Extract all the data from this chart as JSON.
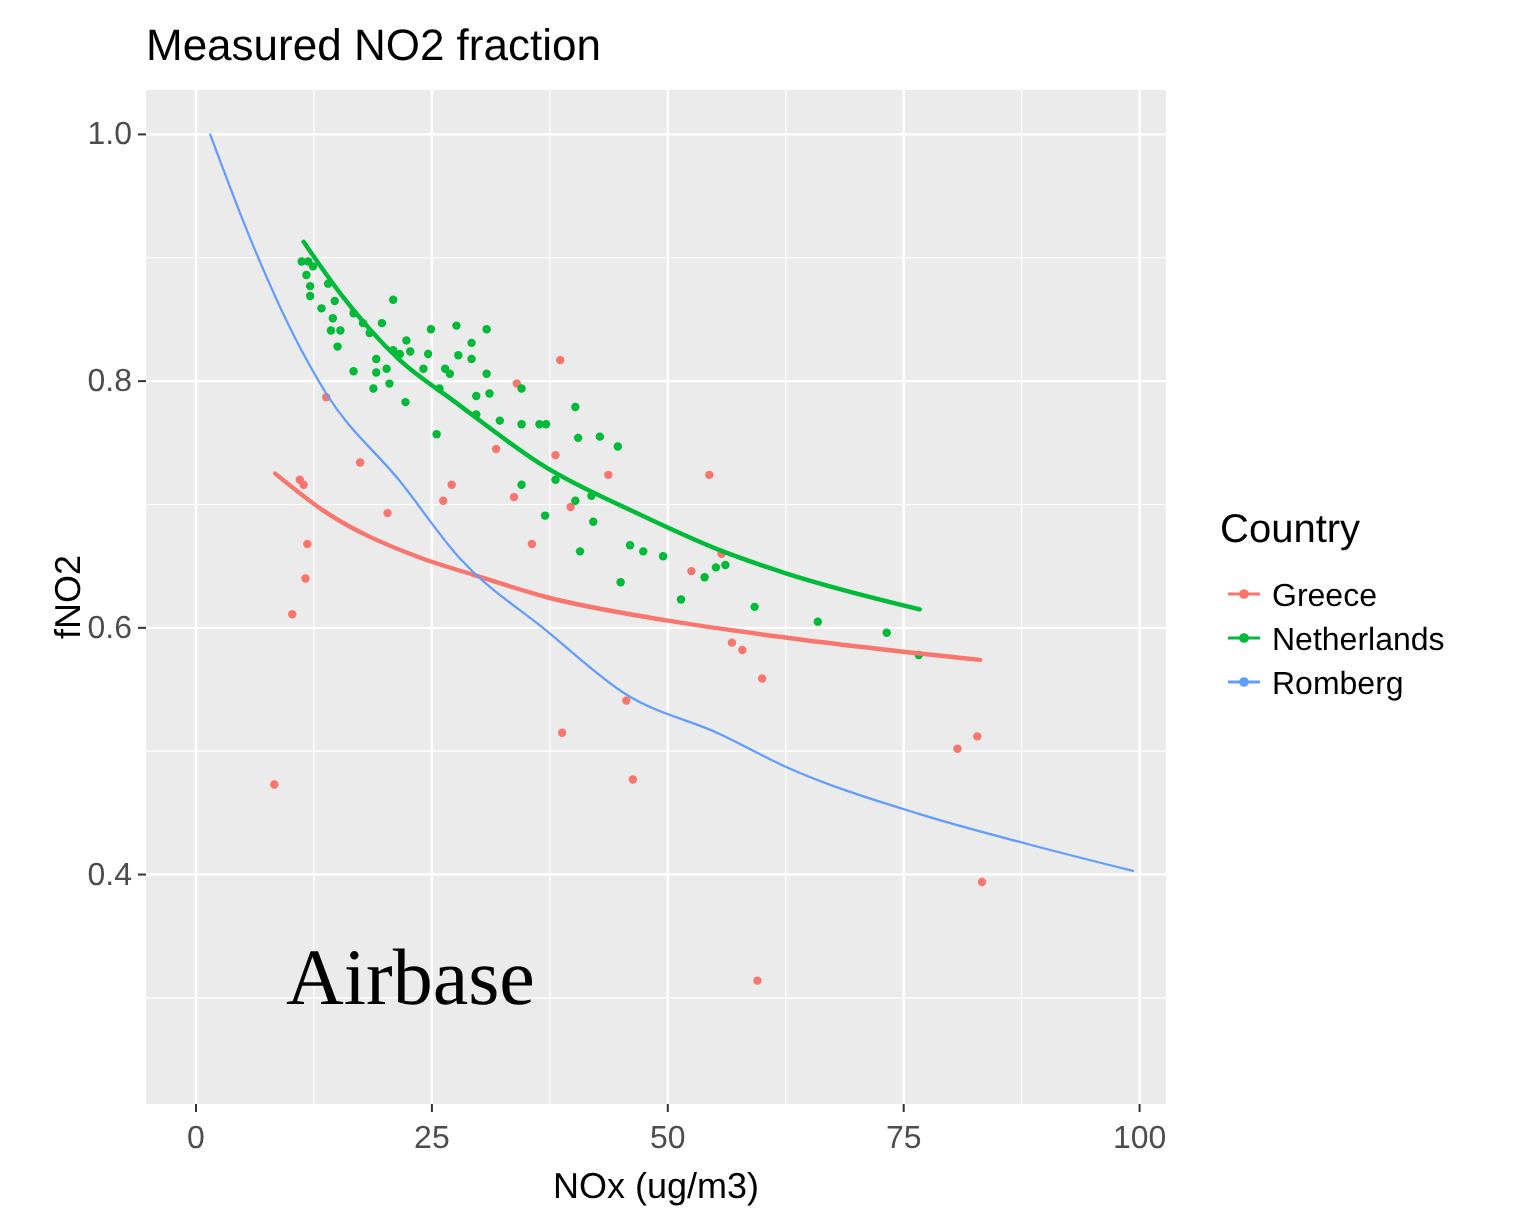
{
  "chart_data": {
    "type": "scatter",
    "title": "Measured NO2 fraction",
    "xlabel": "NOx (ug/m3)",
    "ylabel": "fNO2",
    "legend_title": "Country",
    "legend": "right",
    "grid": true,
    "xlim": [
      -5.3,
      102.8
    ],
    "xticks": [
      0,
      {
        "value": 12.5,
        "label": null
      },
      25,
      {
        "value": 37.5,
        "label": null
      },
      50,
      {
        "value": 62.5,
        "label": null
      },
      75,
      {
        "value": 87.5,
        "label": null
      },
      100
    ],
    "ylim": [
      0.214,
      1.036
    ],
    "yticks": [
      {
        "value": 0.3,
        "label": null
      },
      {
        "value": 0.4,
        "label": "0.4"
      },
      {
        "value": 0.5,
        "label": null
      },
      {
        "value": 0.6,
        "label": "0.6"
      },
      {
        "value": 0.7,
        "label": null
      },
      {
        "value": 0.8,
        "label": "0.8"
      },
      {
        "value": 0.9,
        "label": null
      },
      {
        "value": 1.0,
        "label": "1.0"
      }
    ],
    "annotations": [
      "Airbase"
    ],
    "series": [
      {
        "name": "Greece",
        "marker": "circle",
        "color": "#f8766d",
        "x": [
          8.3,
          10.2,
          11.0,
          11.4,
          11.6,
          11.8,
          13.8,
          17.4,
          20.3,
          26.2,
          27.1,
          31.8,
          33.7,
          34.0,
          35.6,
          38.1,
          38.6,
          38.8,
          39.7,
          43.7,
          45.6,
          46.3,
          52.5,
          54.4,
          55.7,
          56.8,
          57.9,
          59.5,
          60.0,
          80.7,
          82.8,
          83.3
        ],
        "values": [
          0.473,
          0.611,
          0.72,
          0.716,
          0.64,
          0.668,
          0.787,
          0.734,
          0.693,
          0.703,
          0.716,
          0.745,
          0.706,
          0.798,
          0.668,
          0.74,
          0.817,
          0.515,
          0.698,
          0.724,
          0.541,
          0.477,
          0.646,
          0.724,
          0.66,
          0.588,
          0.582,
          0.314,
          0.559,
          0.502,
          0.512,
          0.394
        ]
      },
      {
        "name": "Netherlands",
        "marker": "circle",
        "color": "#00ba38",
        "x": [
          11.2,
          11.9,
          12.4,
          11.7,
          12.1,
          12.1,
          14.0,
          14.7,
          13.3,
          14.5,
          14.3,
          15.3,
          15.0,
          16.7,
          17.7,
          18.4,
          19.7,
          20.9,
          16.7,
          18.8,
          19.1,
          19.1,
          20.2,
          20.5,
          20.9,
          21.6,
          22.3,
          22.7,
          22.2,
          24.1,
          24.6,
          24.9,
          25.8,
          26.4,
          26.9,
          27.6,
          27.8,
          29.2,
          29.2,
          30.8,
          30.8,
          29.7,
          31.1,
          25.5,
          29.7,
          32.2,
          34.5,
          34.5,
          36.4,
          37.1,
          40.2,
          40.5,
          42.8,
          44.7,
          34.5,
          37.0,
          38.1,
          40.2,
          41.9,
          42.1,
          40.7,
          46.0,
          47.4,
          49.5,
          45.0,
          51.4,
          53.9,
          55.1,
          56.1,
          59.2,
          65.9,
          73.2,
          76.6
        ],
        "values": [
          0.897,
          0.897,
          0.893,
          0.886,
          0.877,
          0.869,
          0.879,
          0.865,
          0.859,
          0.851,
          0.841,
          0.841,
          0.828,
          0.855,
          0.847,
          0.839,
          0.847,
          0.866,
          0.808,
          0.794,
          0.807,
          0.818,
          0.81,
          0.798,
          0.825,
          0.822,
          0.833,
          0.824,
          0.783,
          0.81,
          0.822,
          0.842,
          0.794,
          0.81,
          0.806,
          0.845,
          0.821,
          0.831,
          0.818,
          0.842,
          0.806,
          0.788,
          0.79,
          0.757,
          0.773,
          0.768,
          0.794,
          0.765,
          0.765,
          0.765,
          0.779,
          0.754,
          0.755,
          0.747,
          0.716,
          0.691,
          0.72,
          0.703,
          0.707,
          0.686,
          0.662,
          0.667,
          0.662,
          0.658,
          0.637,
          0.623,
          0.641,
          0.649,
          0.651,
          0.617,
          0.605,
          0.596,
          0.578
        ]
      },
      {
        "type": "line",
        "marker": "none",
        "color": "#f8766d",
        "x": [
          8.4,
          13.5,
          23.7,
          29.4,
          37.1,
          49.9,
          62.6,
          83.1
        ],
        "values": [
          0.725,
          0.695,
          0.657,
          0.643,
          0.625,
          0.606,
          0.592,
          0.574
        ]
      },
      {
        "type": "line",
        "marker": "none",
        "color": "#00ba38",
        "x": [
          11.4,
          15.3,
          21.6,
          27.3,
          37.1,
          47.0,
          55.5,
          62.6,
          76.7
        ],
        "values": [
          0.913,
          0.871,
          0.817,
          0.784,
          0.73,
          0.692,
          0.663,
          0.644,
          0.615
        ]
      },
      {
        "name": "Romberg",
        "type": "line",
        "marker": "none",
        "color": "#619cff",
        "x": [
          1.5,
          6.1,
          10.3,
          13.8,
          21.6,
          28.0,
          37.1,
          45.6,
          55.5,
          62.6,
          76.7,
          88.0,
          99.3
        ],
        "values": [
          1.0,
          0.909,
          0.838,
          0.79,
          0.719,
          0.656,
          0.598,
          0.546,
          0.514,
          0.487,
          0.449,
          0.425,
          0.403
        ]
      }
    ]
  }
}
